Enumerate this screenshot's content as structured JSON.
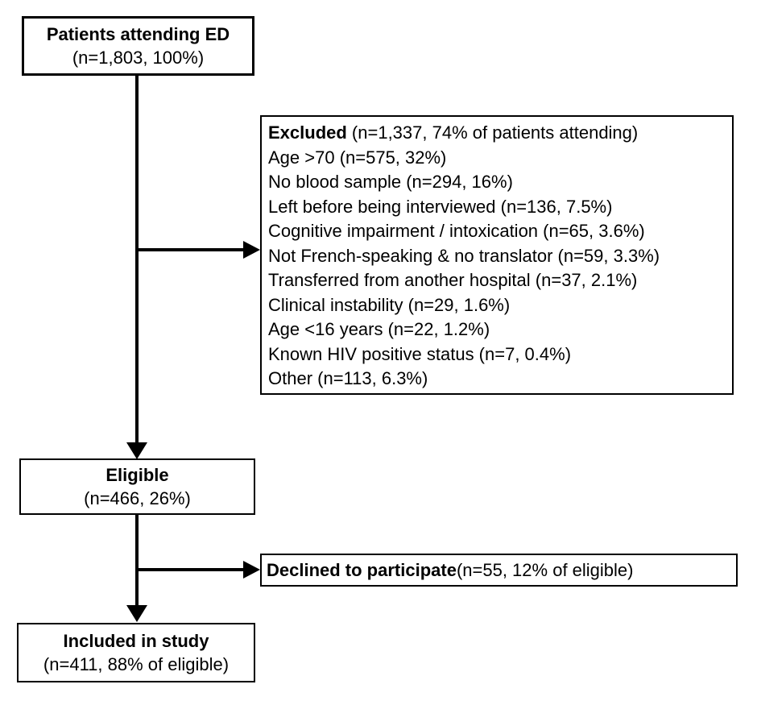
{
  "boxes": {
    "patients": {
      "title": "Patients attending ED",
      "subtitle": "(n=1,803, 100%)"
    },
    "excluded": {
      "title": "Excluded",
      "title_detail": " (n=1,337, 74% of patients attending)",
      "items": [
        "Age >70 (n=575, 32%)",
        "No blood sample (n=294, 16%)",
        "Left before being interviewed (n=136, 7.5%)",
        "Cognitive impairment / intoxication (n=65, 3.6%)",
        "Not French-speaking & no translator (n=59, 3.3%)",
        "Transferred from another hospital (n=37, 2.1%)",
        "Clinical instability (n=29, 1.6%)",
        "Age <16 years (n=22, 1.2%)",
        "Known HIV positive status (n=7, 0.4%)",
        "Other (n=113, 6.3%)"
      ]
    },
    "eligible": {
      "title": "Eligible",
      "subtitle": "(n=466, 26%)"
    },
    "declined": {
      "title": "Declined to participate",
      "title_detail": " (n=55, 12% of eligible)"
    },
    "included": {
      "title": "Included in study",
      "subtitle": "(n=411, 88% of eligible)"
    }
  },
  "colors": {
    "box_border": "#000000",
    "text": "#000000",
    "background": "#ffffff"
  }
}
